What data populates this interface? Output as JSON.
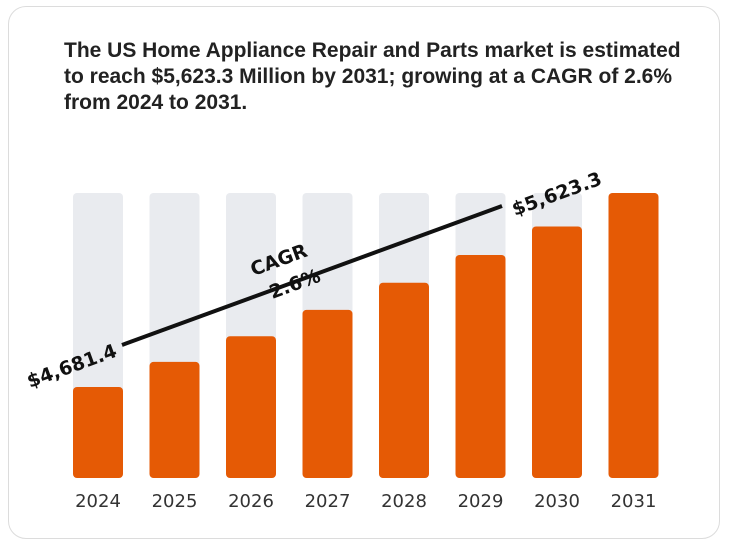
{
  "title": "The US Home Appliance Repair and Parts market is estimated to reach $5,623.3 Million by 2031; growing at a CAGR of 2.6% from 2024 to 2031.",
  "colors": {
    "bar": "#e55a05",
    "track": "#e9ebef",
    "line": "#111111"
  },
  "chart_data": {
    "type": "bar",
    "categories": [
      "2024",
      "2025",
      "2026",
      "2027",
      "2028",
      "2029",
      "2030",
      "2031"
    ],
    "values": [
      4681.4,
      4803.1,
      4928.0,
      5056.1,
      5187.6,
      5322.5,
      5460.9,
      5623.3
    ],
    "value_unit": "Million",
    "start_label": "$4,681.4",
    "end_label": "$5,623.3",
    "cagr_label": "CAGR",
    "cagr_value": "2.6%",
    "grid": false,
    "legend": "none"
  }
}
